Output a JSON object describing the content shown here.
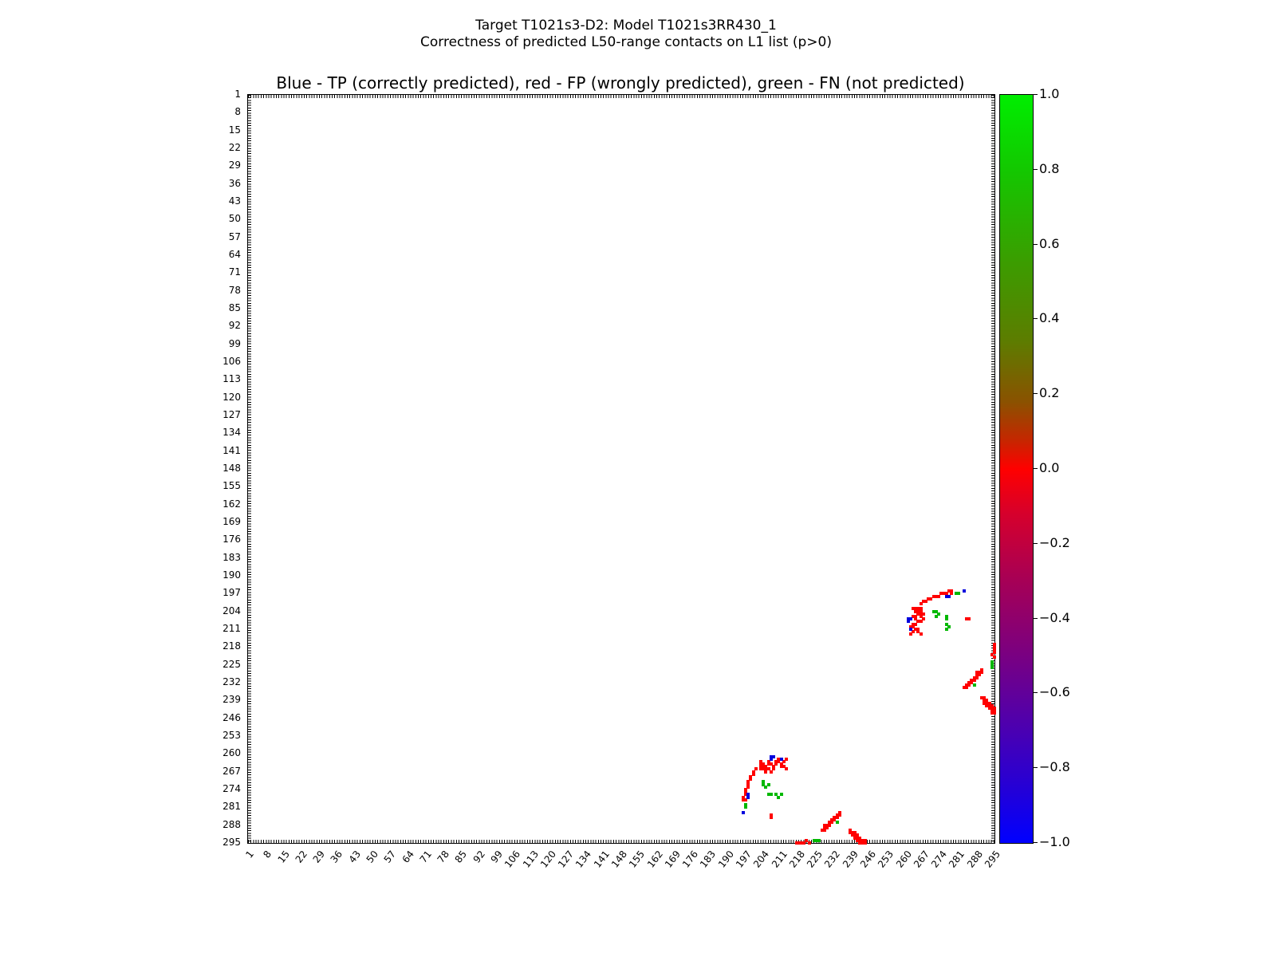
{
  "figure": {
    "suptitle_line1": "Target T1021s3-D2: Model T1021s3RR430_1",
    "suptitle_line2": "Correctness of predicted L50-range contacts on L1 list (p>0)",
    "axes_title": "Blue - TP (correctly predicted), red - FP (wrongly predicted), green - FN (not predicted)"
  },
  "chart_data": {
    "type": "scatter",
    "title": "Blue - TP (correctly predicted), red - FP (wrongly predicted), green - FN (not predicted)",
    "xlabel": "",
    "ylabel": "",
    "x_range": [
      1,
      295
    ],
    "y_range": [
      1,
      295
    ],
    "y_inverted": true,
    "grid": false,
    "symmetric": true,
    "tick_step": 7,
    "tick_labels": [
      "1",
      "8",
      "15",
      "22",
      "29",
      "36",
      "43",
      "50",
      "57",
      "64",
      "71",
      "78",
      "85",
      "92",
      "99",
      "106",
      "113",
      "120",
      "127",
      "134",
      "141",
      "148",
      "155",
      "162",
      "169",
      "176",
      "183",
      "190",
      "197",
      "204",
      "211",
      "218",
      "225",
      "232",
      "239",
      "246",
      "253",
      "260",
      "267",
      "274",
      "281",
      "288",
      "295"
    ],
    "legend": {
      "TP": "correctly predicted",
      "FP": "wrongly predicted",
      "FN": "not predicted"
    },
    "colors": {
      "TP": "#0000dd",
      "FP": "#ff0000",
      "FN": "#00b800"
    },
    "points": [
      [
        266,
        201,
        "FP"
      ],
      [
        267,
        200,
        "FP"
      ],
      [
        268,
        200,
        "FP"
      ],
      [
        269,
        199,
        "FP"
      ],
      [
        270,
        199,
        "FP"
      ],
      [
        271,
        198,
        "FP"
      ],
      [
        272,
        198,
        "FP"
      ],
      [
        273,
        198,
        "FP"
      ],
      [
        274,
        197,
        "FP"
      ],
      [
        275,
        197,
        "FP"
      ],
      [
        276,
        197,
        "FP"
      ],
      [
        277,
        196,
        "FP"
      ],
      [
        278,
        196,
        "FP"
      ],
      [
        278,
        197,
        "FP"
      ],
      [
        276,
        198,
        "TP"
      ],
      [
        277,
        198,
        "TP"
      ],
      [
        283,
        196,
        "TP"
      ],
      [
        280,
        197,
        "FN"
      ],
      [
        281,
        197,
        "FN"
      ],
      [
        263,
        203,
        "FP"
      ],
      [
        264,
        203,
        "FP"
      ],
      [
        265,
        203,
        "FP"
      ],
      [
        266,
        203,
        "FP"
      ],
      [
        264,
        204,
        "FP"
      ],
      [
        265,
        204,
        "FP"
      ],
      [
        266,
        204,
        "FP"
      ],
      [
        265,
        205,
        "FP"
      ],
      [
        266,
        205,
        "FP"
      ],
      [
        267,
        205,
        "FP"
      ],
      [
        263,
        206,
        "FP"
      ],
      [
        264,
        206,
        "FP"
      ],
      [
        266,
        206,
        "FP"
      ],
      [
        264,
        207,
        "FP"
      ],
      [
        267,
        207,
        "FP"
      ],
      [
        265,
        208,
        "FP"
      ],
      [
        266,
        208,
        "FP"
      ],
      [
        263,
        209,
        "FP"
      ],
      [
        264,
        209,
        "FP"
      ],
      [
        262,
        210,
        "FP"
      ],
      [
        263,
        210,
        "FP"
      ],
      [
        264,
        211,
        "FP"
      ],
      [
        265,
        211,
        "FP"
      ],
      [
        263,
        212,
        "FP"
      ],
      [
        265,
        212,
        "FP"
      ],
      [
        262,
        213,
        "FP"
      ],
      [
        266,
        213,
        "FP"
      ],
      [
        261,
        207,
        "TP"
      ],
      [
        262,
        207,
        "TP"
      ],
      [
        261,
        208,
        "TP"
      ],
      [
        262,
        211,
        "TP"
      ],
      [
        271,
        204,
        "FN"
      ],
      [
        272,
        204,
        "FN"
      ],
      [
        273,
        205,
        "FN"
      ],
      [
        272,
        206,
        "FN"
      ],
      [
        276,
        206,
        "FN"
      ],
      [
        276,
        207,
        "FN"
      ],
      [
        276,
        209,
        "FN"
      ],
      [
        277,
        210,
        "FN"
      ],
      [
        276,
        211,
        "FN"
      ],
      [
        284,
        207,
        "FP"
      ],
      [
        285,
        207,
        "FP"
      ],
      [
        290,
        227,
        "FP"
      ],
      [
        288,
        228,
        "FP"
      ],
      [
        289,
        228,
        "FP"
      ],
      [
        290,
        228,
        "FP"
      ],
      [
        288,
        229,
        "FP"
      ],
      [
        289,
        229,
        "FP"
      ],
      [
        287,
        230,
        "FP"
      ],
      [
        288,
        230,
        "FP"
      ],
      [
        286,
        231,
        "FP"
      ],
      [
        287,
        231,
        "FP"
      ],
      [
        285,
        232,
        "FP"
      ],
      [
        286,
        232,
        "FP"
      ],
      [
        284,
        233,
        "FP"
      ],
      [
        285,
        233,
        "FP"
      ],
      [
        283,
        234,
        "FP"
      ],
      [
        284,
        234,
        "FP"
      ],
      [
        287,
        233,
        "FN"
      ],
      [
        294,
        224,
        "FN"
      ],
      [
        294,
        225,
        "FN"
      ],
      [
        294,
        226,
        "FN"
      ],
      [
        290,
        238,
        "FP"
      ],
      [
        291,
        238,
        "FP"
      ],
      [
        291,
        239,
        "FP"
      ],
      [
        292,
        239,
        "FP"
      ],
      [
        291,
        240,
        "FP"
      ],
      [
        292,
        240,
        "FP"
      ],
      [
        293,
        240,
        "FP"
      ],
      [
        292,
        241,
        "FP"
      ],
      [
        293,
        241,
        "FP"
      ],
      [
        294,
        241,
        "FP"
      ],
      [
        293,
        242,
        "FP"
      ],
      [
        294,
        242,
        "FP"
      ],
      [
        295,
        242,
        "FP"
      ],
      [
        294,
        243,
        "FP"
      ],
      [
        295,
        243,
        "FP"
      ],
      [
        294,
        244,
        "FP"
      ],
      [
        295,
        244,
        "FP"
      ],
      [
        295,
        217,
        "FP"
      ],
      [
        295,
        218,
        "FP"
      ],
      [
        295,
        219,
        "FP"
      ],
      [
        295,
        220,
        "FP"
      ],
      [
        294,
        221,
        "FP"
      ],
      [
        295,
        222,
        "FP"
      ]
    ],
    "colorbar": {
      "tick_labels": [
        "1.0",
        "0.8",
        "0.6",
        "0.4",
        "0.2",
        "0.0",
        "−0.2",
        "−0.4",
        "−0.6",
        "−0.8",
        "−1.0"
      ],
      "tick_values": [
        1.0,
        0.8,
        0.6,
        0.4,
        0.2,
        0.0,
        -0.2,
        -0.4,
        -0.6,
        -0.8,
        -1.0
      ],
      "range": [
        -1.0,
        1.0
      ],
      "gradient_stops": [
        [
          0.0,
          "#00ee00"
        ],
        [
          0.1,
          "#13c800"
        ],
        [
          0.22,
          "#3a9e00"
        ],
        [
          0.33,
          "#5d7c00"
        ],
        [
          0.41,
          "#8a5200"
        ],
        [
          0.46,
          "#c32800"
        ],
        [
          0.5,
          "#ff0000"
        ],
        [
          0.56,
          "#d6002c"
        ],
        [
          0.65,
          "#a60056"
        ],
        [
          0.75,
          "#790082"
        ],
        [
          0.85,
          "#4a00b2"
        ],
        [
          0.93,
          "#2300d8"
        ],
        [
          1.0,
          "#0000ff"
        ]
      ]
    }
  }
}
